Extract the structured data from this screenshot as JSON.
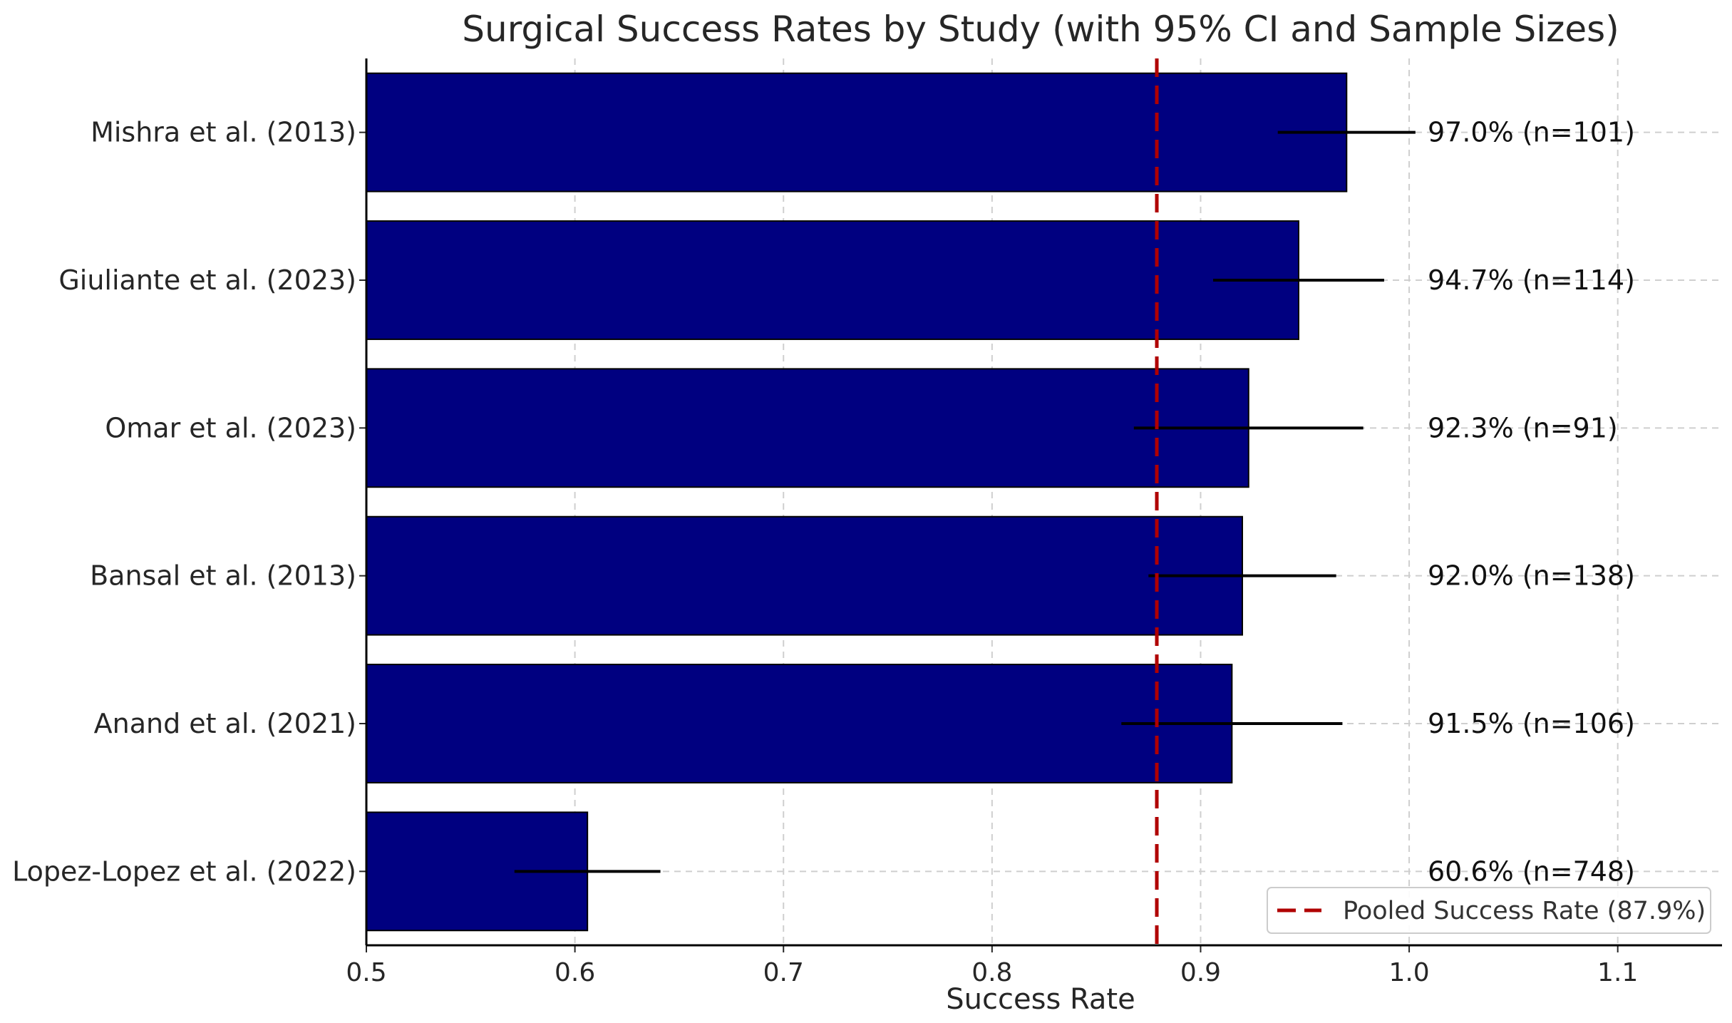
{
  "chart_data": {
    "type": "bar",
    "orientation": "horizontal",
    "title": "Surgical Success Rates by Study (with 95% CI and Sample Sizes)",
    "xlabel": "Success Rate",
    "ylabel": "",
    "xlim": [
      0.5,
      1.15
    ],
    "xticks": [
      0.5,
      0.6,
      0.7,
      0.8,
      0.9,
      1.0,
      1.1
    ],
    "xtick_labels": [
      "0.5",
      "0.6",
      "0.7",
      "0.8",
      "0.9",
      "1.0",
      "1.1"
    ],
    "grid": true,
    "bar_color": "#000080",
    "errorbar_color": "#000000",
    "studies": [
      {
        "name": "Mishra et al. (2013)",
        "value": 0.97,
        "ci_low": 0.937,
        "ci_high": 1.003,
        "label": "97.0% (n=101)"
      },
      {
        "name": "Giuliante et al. (2023)",
        "value": 0.947,
        "ci_low": 0.906,
        "ci_high": 0.988,
        "label": "94.7% (n=114)"
      },
      {
        "name": "Omar et al. (2023)",
        "value": 0.923,
        "ci_low": 0.868,
        "ci_high": 0.978,
        "label": "92.3% (n=91)"
      },
      {
        "name": "Bansal et al. (2013)",
        "value": 0.92,
        "ci_low": 0.875,
        "ci_high": 0.965,
        "label": "92.0% (n=138)"
      },
      {
        "name": "Anand et al. (2021)",
        "value": 0.915,
        "ci_low": 0.862,
        "ci_high": 0.968,
        "label": "91.5% (n=106)"
      },
      {
        "name": "Lopez-Lopez et al. (2022)",
        "value": 0.606,
        "ci_low": 0.571,
        "ci_high": 0.641,
        "label": "60.6% (n=748)"
      }
    ],
    "reference_line": {
      "value": 0.879,
      "color": "#b00000",
      "label": "Pooled Success Rate (87.9%)"
    },
    "legend_position": "lower-right"
  }
}
